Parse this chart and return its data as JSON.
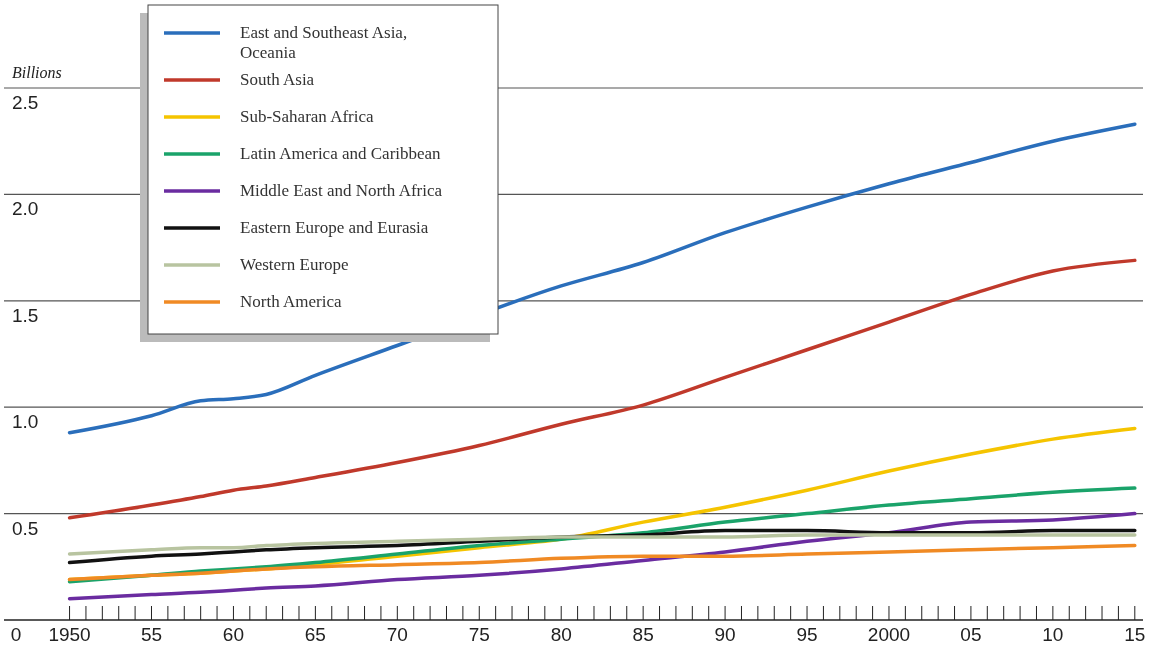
{
  "chart_data": {
    "type": "line",
    "ylabel": "Billions",
    "x": [
      1950,
      1955,
      1958,
      1960,
      1962,
      1965,
      1970,
      1975,
      1980,
      1985,
      1990,
      1995,
      2000,
      2005,
      2010,
      2015
    ],
    "xlim": [
      1946,
      2015.5
    ],
    "xticks": [
      {
        "value": 1950,
        "label": "1950"
      },
      {
        "value": 1951,
        "label": null
      },
      {
        "value": 1952,
        "label": null
      },
      {
        "value": 1953,
        "label": null
      },
      {
        "value": 1954,
        "label": null
      },
      {
        "value": 1955,
        "label": "55"
      },
      {
        "value": 1956,
        "label": null
      },
      {
        "value": 1957,
        "label": null
      },
      {
        "value": 1958,
        "label": null
      },
      {
        "value": 1959,
        "label": null
      },
      {
        "value": 1960,
        "label": "60"
      },
      {
        "value": 1961,
        "label": null
      },
      {
        "value": 1962,
        "label": null
      },
      {
        "value": 1963,
        "label": null
      },
      {
        "value": 1964,
        "label": null
      },
      {
        "value": 1965,
        "label": "65"
      },
      {
        "value": 1966,
        "label": null
      },
      {
        "value": 1967,
        "label": null
      },
      {
        "value": 1968,
        "label": null
      },
      {
        "value": 1969,
        "label": null
      },
      {
        "value": 1970,
        "label": "70"
      },
      {
        "value": 1971,
        "label": null
      },
      {
        "value": 1972,
        "label": null
      },
      {
        "value": 1973,
        "label": null
      },
      {
        "value": 1974,
        "label": null
      },
      {
        "value": 1975,
        "label": "75"
      },
      {
        "value": 1976,
        "label": null
      },
      {
        "value": 1977,
        "label": null
      },
      {
        "value": 1978,
        "label": null
      },
      {
        "value": 1979,
        "label": null
      },
      {
        "value": 1980,
        "label": "80"
      },
      {
        "value": 1981,
        "label": null
      },
      {
        "value": 1982,
        "label": null
      },
      {
        "value": 1983,
        "label": null
      },
      {
        "value": 1984,
        "label": null
      },
      {
        "value": 1985,
        "label": "85"
      },
      {
        "value": 1986,
        "label": null
      },
      {
        "value": 1987,
        "label": null
      },
      {
        "value": 1988,
        "label": null
      },
      {
        "value": 1989,
        "label": null
      },
      {
        "value": 1990,
        "label": "90"
      },
      {
        "value": 1991,
        "label": null
      },
      {
        "value": 1992,
        "label": null
      },
      {
        "value": 1993,
        "label": null
      },
      {
        "value": 1994,
        "label": null
      },
      {
        "value": 1995,
        "label": "95"
      },
      {
        "value": 1996,
        "label": null
      },
      {
        "value": 1997,
        "label": null
      },
      {
        "value": 1998,
        "label": null
      },
      {
        "value": 1999,
        "label": null
      },
      {
        "value": 2000,
        "label": "2000"
      },
      {
        "value": 2001,
        "label": null
      },
      {
        "value": 2002,
        "label": null
      },
      {
        "value": 2003,
        "label": null
      },
      {
        "value": 2004,
        "label": null
      },
      {
        "value": 2005,
        "label": "05"
      },
      {
        "value": 2006,
        "label": null
      },
      {
        "value": 2007,
        "label": null
      },
      {
        "value": 2008,
        "label": null
      },
      {
        "value": 2009,
        "label": null
      },
      {
        "value": 2010,
        "label": "10"
      },
      {
        "value": 2011,
        "label": null
      },
      {
        "value": 2012,
        "label": null
      },
      {
        "value": 2013,
        "label": null
      },
      {
        "value": 2014,
        "label": null
      },
      {
        "value": 2015,
        "label": "15"
      }
    ],
    "ylim": [
      0,
      2.5
    ],
    "yticks": [
      0,
      {
        "value": 0.5,
        "label": "0.5"
      },
      {
        "value": 1,
        "label": "1.0"
      },
      {
        "value": 1.5,
        "label": "1.5"
      },
      {
        "value": 2,
        "label": "2.0"
      },
      {
        "value": 2.5,
        "label": "2.5"
      }
    ],
    "grid": "y",
    "legend": "top left",
    "marker": "none",
    "line_style": "solid",
    "series": [
      {
        "name": "East and Southeast Asia, Oceania",
        "color": "#2a6ebb",
        "values": [
          0.88,
          0.96,
          1.03,
          1.04,
          1.06,
          1.15,
          1.29,
          null,
          1.57,
          1.68,
          1.82,
          1.94,
          2.05,
          2.15,
          2.25,
          2.33
        ]
      },
      {
        "name": "South Asia",
        "color": "#c0392b",
        "values": [
          0.48,
          0.54,
          0.58,
          0.61,
          0.63,
          0.67,
          0.74,
          0.82,
          0.92,
          1.01,
          1.14,
          1.27,
          1.4,
          1.53,
          1.64,
          1.69
        ]
      },
      {
        "name": "Sub-Saharan Africa",
        "color": "#f5c400",
        "values": [
          0.19,
          0.21,
          0.22,
          0.23,
          0.24,
          0.26,
          0.3,
          0.34,
          0.38,
          0.46,
          0.53,
          0.61,
          0.7,
          0.78,
          0.85,
          0.9
        ]
      },
      {
        "name": "Latin America and Caribbean",
        "color": "#1aa36a",
        "values": [
          0.18,
          0.21,
          0.23,
          0.24,
          0.25,
          0.27,
          0.31,
          0.35,
          0.38,
          0.41,
          0.46,
          0.5,
          0.54,
          0.57,
          0.6,
          0.62
        ]
      },
      {
        "name": "Middle East and North Africa",
        "color": "#6a2ca0",
        "values": [
          0.1,
          0.12,
          0.13,
          0.14,
          0.15,
          0.16,
          0.19,
          0.21,
          0.24,
          0.28,
          0.32,
          0.37,
          0.41,
          0.46,
          0.47,
          0.5
        ]
      },
      {
        "name": "Eastern Europe and Eurasia",
        "color": "#111111",
        "values": [
          0.27,
          0.3,
          0.31,
          0.32,
          0.33,
          0.34,
          0.35,
          0.37,
          0.39,
          0.4,
          0.42,
          0.42,
          0.41,
          0.41,
          0.42,
          0.42
        ]
      },
      {
        "name": "Western Europe",
        "color": "#b8c4a0",
        "values": [
          0.31,
          0.33,
          0.34,
          0.34,
          0.35,
          0.36,
          0.37,
          0.38,
          0.39,
          0.39,
          0.39,
          0.4,
          0.4,
          0.4,
          0.4,
          0.4
        ]
      },
      {
        "name": "North America",
        "color": "#f08a24",
        "values": [
          0.19,
          0.21,
          0.22,
          0.23,
          0.24,
          0.25,
          0.26,
          0.27,
          0.29,
          0.3,
          0.3,
          0.31,
          0.32,
          0.33,
          0.34,
          0.35
        ]
      }
    ]
  }
}
